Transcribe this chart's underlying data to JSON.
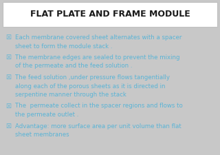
{
  "title": "FLAT PLATE AND FRAME MODULE",
  "title_color": "#1a1a1a",
  "title_bg": "#ffffff",
  "body_bg": "#c8c8c8",
  "bullet_color": "#5ab4d6",
  "bullet_char": "☒",
  "bullets": [
    [
      "Each membrane covered sheet alternates with a spacer",
      "sheet to form the module stack ."
    ],
    [
      "The membrane edges are sealed to prevent the mixing",
      "of the permeate and the feed solution ."
    ],
    [
      "The feed solution ,under pressure flows tangentially",
      "along each of the porous sheets as it is directed in",
      "serpentine manner through the stack"
    ],
    [
      "The  permeate collect in the spacer regions and flows to",
      "the permeate outlet ."
    ],
    [
      "Advantage: more surface area per unit volume than flat",
      "sheet membranes"
    ]
  ],
  "fig_width": 3.2,
  "fig_height": 2.25,
  "dpi": 100
}
